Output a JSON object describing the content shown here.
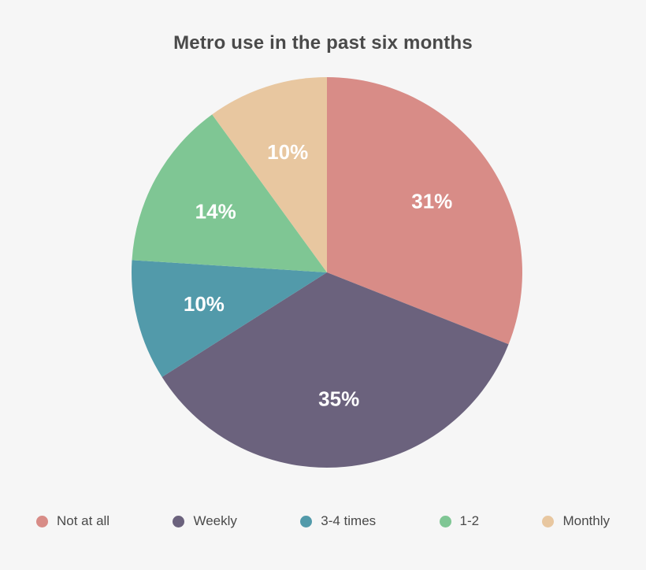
{
  "page": {
    "background_color": "#f6f6f6",
    "title_color": "#4a4a4a",
    "legend_text_color": "#4a4a4a"
  },
  "chart_data": {
    "type": "pie",
    "title": "Metro use in the past six months",
    "segments": [
      {
        "label": "Not at all",
        "value": 31,
        "color": "#d88c87",
        "value_label": "31%"
      },
      {
        "label": "Weekly",
        "value": 35,
        "color": "#6b627d",
        "value_label": "35%"
      },
      {
        "label": "3-4 times",
        "value": 10,
        "color": "#529aaa",
        "value_label": "10%"
      },
      {
        "label": "1-2",
        "value": 14,
        "color": "#7fc694",
        "value_label": "14%"
      },
      {
        "label": "Monthly",
        "value": 10,
        "color": "#e8c7a0",
        "value_label": "10%"
      }
    ],
    "start_angle_deg": 0,
    "direction": "clockwise",
    "slice_label_color": "#ffffff",
    "legend_position": "bottom"
  }
}
